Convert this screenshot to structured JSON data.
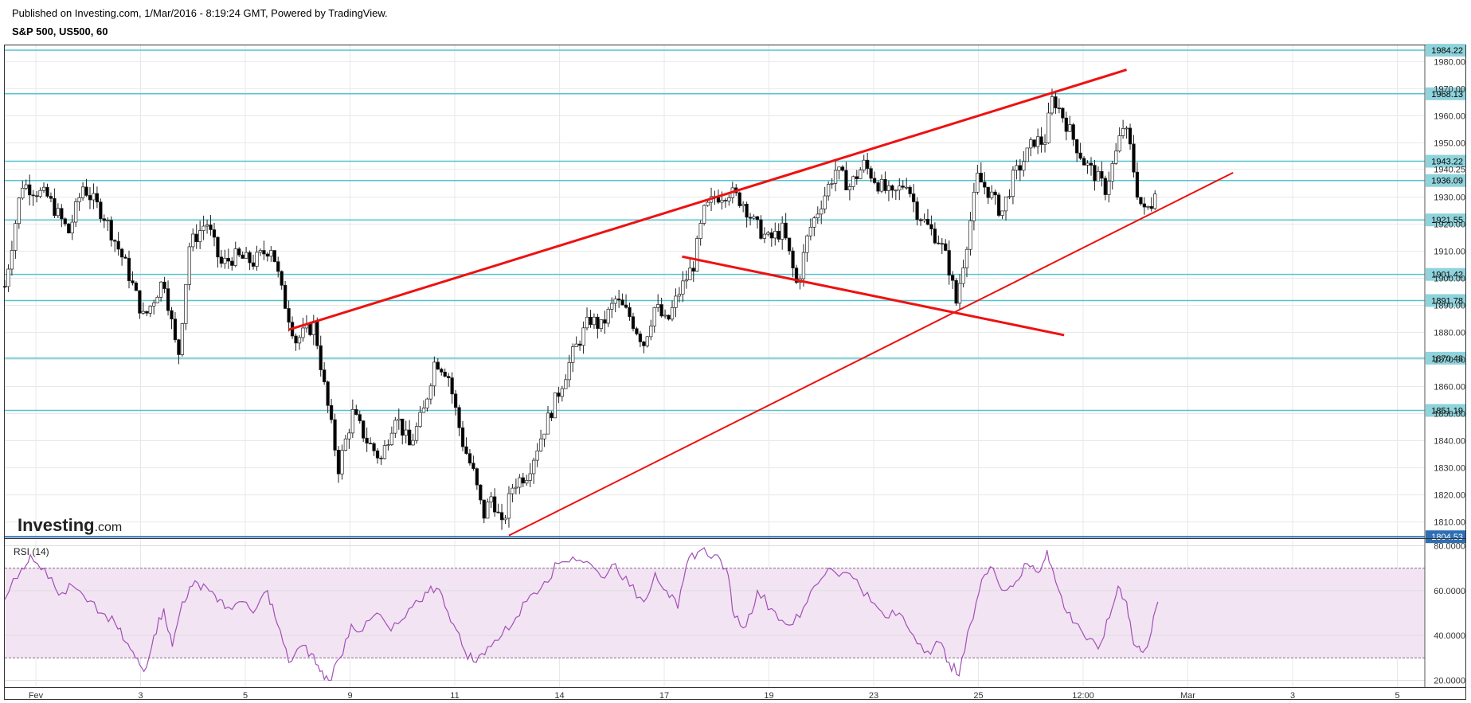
{
  "header": {
    "published": "Published on Investing.com, 1/Mar/2016 - 8:19:24 GMT, Powered by TradingView.",
    "symbol": "S&P 500, US500, 60"
  },
  "watermark": {
    "brand": "Investing",
    "suffix": ".com"
  },
  "rsi_label": "RSI (14)",
  "colors": {
    "hline": "#56c3d0",
    "trend": "#ee1111",
    "support_line": "#2e6fb3",
    "rsi_line": "#a24fb8",
    "rsi_band": "#f2e4f2",
    "candle_up": "#ffffff",
    "candle_down": "#000000",
    "grid": "#e8e8e8"
  },
  "chart_data": [
    {
      "type": "candlestick",
      "title": "S&P 500, US500, 60",
      "ylim": [
        1804,
        1986
      ],
      "price_ticks": [
        "1980.00",
        "1970.00",
        "1960.00",
        "1950.00",
        "1940.25",
        "1930.00",
        "1920.00",
        "1910.00",
        "1900.00",
        "1890.00",
        "1880.00",
        "1870.00",
        "1860.00",
        "1850.00",
        "1840.00",
        "1830.00",
        "1820.00",
        "1810.00"
      ],
      "x_ticks": [
        "Fev",
        "3",
        "5",
        "9",
        "11",
        "14",
        "17",
        "19",
        "23",
        "25",
        "12:00",
        "Mar",
        "3",
        "5"
      ],
      "horizontal_levels": [
        {
          "value": 1984.22,
          "label": "1984.22"
        },
        {
          "value": 1968.13,
          "label": "1968.13"
        },
        {
          "value": 1943.22,
          "label": "1943.22"
        },
        {
          "value": 1936.09,
          "label": "1936.09"
        },
        {
          "value": 1921.55,
          "label": "1921.55"
        },
        {
          "value": 1901.42,
          "label": "1901.42"
        },
        {
          "value": 1891.78,
          "label": "1891.78"
        },
        {
          "value": 1870.48,
          "label": "1870.48"
        },
        {
          "value": 1851.19,
          "label": "1851.19"
        },
        {
          "value": 1804.53,
          "label": "1804.53",
          "style": "support"
        }
      ],
      "trendlines": [
        {
          "name": "upper-channel",
          "x": [
            0.2,
            0.79
          ],
          "y": [
            1881,
            1977
          ],
          "width": "thick"
        },
        {
          "name": "lower-channel",
          "x": [
            0.355,
            0.865
          ],
          "y": [
            1805,
            1939
          ],
          "width": "thin"
        },
        {
          "name": "descending-line",
          "x": [
            0.477,
            0.746
          ],
          "y": [
            1908,
            1879
          ],
          "width": "thick"
        }
      ],
      "close_path": [
        [
          0.0,
          1897
        ],
        [
          0.012,
          1935
        ],
        [
          0.03,
          1930
        ],
        [
          0.045,
          1917
        ],
        [
          0.055,
          1934
        ],
        [
          0.07,
          1923
        ],
        [
          0.085,
          1905
        ],
        [
          0.098,
          1885
        ],
        [
          0.112,
          1900
        ],
        [
          0.122,
          1870
        ],
        [
          0.13,
          1912
        ],
        [
          0.142,
          1921
        ],
        [
          0.152,
          1905
        ],
        [
          0.162,
          1908
        ],
        [
          0.175,
          1906
        ],
        [
          0.188,
          1912
        ],
        [
          0.195,
          1895
        ],
        [
          0.205,
          1877
        ],
        [
          0.218,
          1883
        ],
        [
          0.225,
          1860
        ],
        [
          0.235,
          1830
        ],
        [
          0.245,
          1850
        ],
        [
          0.255,
          1840
        ],
        [
          0.265,
          1833
        ],
        [
          0.275,
          1850
        ],
        [
          0.285,
          1838
        ],
        [
          0.295,
          1851
        ],
        [
          0.303,
          1870
        ],
        [
          0.312,
          1865
        ],
        [
          0.322,
          1840
        ],
        [
          0.33,
          1828
        ],
        [
          0.337,
          1812
        ],
        [
          0.343,
          1820
        ],
        [
          0.35,
          1808
        ],
        [
          0.358,
          1824
        ],
        [
          0.368,
          1828
        ],
        [
          0.378,
          1842
        ],
        [
          0.39,
          1858
        ],
        [
          0.4,
          1872
        ],
        [
          0.412,
          1885
        ],
        [
          0.42,
          1882
        ],
        [
          0.43,
          1892
        ],
        [
          0.44,
          1886
        ],
        [
          0.45,
          1876
        ],
        [
          0.458,
          1890
        ],
        [
          0.466,
          1883
        ],
        [
          0.475,
          1895
        ],
        [
          0.485,
          1905
        ],
        [
          0.492,
          1924
        ],
        [
          0.5,
          1930
        ],
        [
          0.51,
          1932
        ],
        [
          0.52,
          1928
        ],
        [
          0.528,
          1920
        ],
        [
          0.538,
          1914
        ],
        [
          0.548,
          1918
        ],
        [
          0.558,
          1897
        ],
        [
          0.566,
          1917
        ],
        [
          0.575,
          1928
        ],
        [
          0.585,
          1940
        ],
        [
          0.595,
          1934
        ],
        [
          0.605,
          1942
        ],
        [
          0.615,
          1935
        ],
        [
          0.625,
          1930
        ],
        [
          0.635,
          1936
        ],
        [
          0.642,
          1925
        ],
        [
          0.65,
          1919
        ],
        [
          0.658,
          1914
        ],
        [
          0.664,
          1906
        ],
        [
          0.67,
          1891
        ],
        [
          0.677,
          1912
        ],
        [
          0.685,
          1937
        ],
        [
          0.693,
          1932
        ],
        [
          0.702,
          1924
        ],
        [
          0.71,
          1937
        ],
        [
          0.718,
          1944
        ],
        [
          0.725,
          1951
        ],
        [
          0.732,
          1950
        ],
        [
          0.738,
          1967
        ],
        [
          0.745,
          1960
        ],
        [
          0.752,
          1952
        ],
        [
          0.76,
          1943
        ],
        [
          0.768,
          1938
        ],
        [
          0.775,
          1933
        ],
        [
          0.782,
          1945
        ],
        [
          0.788,
          1957
        ],
        [
          0.793,
          1947
        ],
        [
          0.797,
          1933
        ],
        [
          0.802,
          1924
        ],
        [
          0.808,
          1928
        ],
        [
          0.812,
          1940
        ]
      ]
    },
    {
      "type": "line",
      "title": "RSI (14)",
      "ylim": [
        17,
        83
      ],
      "ticks": [
        "80.0000",
        "60.0000",
        "40.0000",
        "20.0000"
      ],
      "band": [
        30,
        70
      ],
      "x_ticks": [
        "Fev",
        "3",
        "5",
        "9",
        "11",
        "14",
        "17",
        "19",
        "23",
        "25",
        "12:00",
        "Mar",
        "3",
        "5"
      ],
      "values": [
        [
          0.0,
          56
        ],
        [
          0.012,
          70
        ],
        [
          0.018,
          76
        ],
        [
          0.028,
          70
        ],
        [
          0.038,
          58
        ],
        [
          0.048,
          62
        ],
        [
          0.058,
          55
        ],
        [
          0.068,
          50
        ],
        [
          0.078,
          45
        ],
        [
          0.085,
          37
        ],
        [
          0.092,
          30
        ],
        [
          0.098,
          24
        ],
        [
          0.105,
          40
        ],
        [
          0.112,
          52
        ],
        [
          0.118,
          35
        ],
        [
          0.125,
          55
        ],
        [
          0.132,
          62
        ],
        [
          0.14,
          63
        ],
        [
          0.148,
          58
        ],
        [
          0.155,
          52
        ],
        [
          0.165,
          55
        ],
        [
          0.175,
          50
        ],
        [
          0.185,
          60
        ],
        [
          0.192,
          45
        ],
        [
          0.2,
          28
        ],
        [
          0.208,
          35
        ],
        [
          0.216,
          32
        ],
        [
          0.222,
          24
        ],
        [
          0.228,
          20
        ],
        [
          0.236,
          30
        ],
        [
          0.244,
          45
        ],
        [
          0.252,
          42
        ],
        [
          0.262,
          50
        ],
        [
          0.272,
          42
        ],
        [
          0.282,
          48
        ],
        [
          0.292,
          55
        ],
        [
          0.3,
          62
        ],
        [
          0.308,
          58
        ],
        [
          0.316,
          45
        ],
        [
          0.324,
          33
        ],
        [
          0.332,
          28
        ],
        [
          0.34,
          35
        ],
        [
          0.35,
          40
        ],
        [
          0.36,
          48
        ],
        [
          0.37,
          58
        ],
        [
          0.38,
          64
        ],
        [
          0.39,
          72
        ],
        [
          0.4,
          75
        ],
        [
          0.41,
          73
        ],
        [
          0.42,
          66
        ],
        [
          0.43,
          72
        ],
        [
          0.44,
          62
        ],
        [
          0.45,
          55
        ],
        [
          0.458,
          68
        ],
        [
          0.466,
          60
        ],
        [
          0.474,
          52
        ],
        [
          0.482,
          75
        ],
        [
          0.49,
          78
        ],
        [
          0.5,
          76
        ],
        [
          0.508,
          70
        ],
        [
          0.514,
          48
        ],
        [
          0.522,
          44
        ],
        [
          0.53,
          60
        ],
        [
          0.54,
          52
        ],
        [
          0.55,
          45
        ],
        [
          0.56,
          48
        ],
        [
          0.57,
          62
        ],
        [
          0.58,
          70
        ],
        [
          0.59,
          68
        ],
        [
          0.6,
          65
        ],
        [
          0.61,
          55
        ],
        [
          0.62,
          48
        ],
        [
          0.63,
          50
        ],
        [
          0.64,
          40
        ],
        [
          0.65,
          33
        ],
        [
          0.658,
          37
        ],
        [
          0.665,
          28
        ],
        [
          0.672,
          22
        ],
        [
          0.68,
          45
        ],
        [
          0.688,
          65
        ],
        [
          0.696,
          70
        ],
        [
          0.704,
          60
        ],
        [
          0.712,
          64
        ],
        [
          0.72,
          72
        ],
        [
          0.728,
          68
        ],
        [
          0.734,
          78
        ],
        [
          0.74,
          64
        ],
        [
          0.748,
          50
        ],
        [
          0.756,
          45
        ],
        [
          0.762,
          38
        ],
        [
          0.77,
          34
        ],
        [
          0.778,
          48
        ],
        [
          0.784,
          62
        ],
        [
          0.79,
          55
        ],
        [
          0.795,
          36
        ],
        [
          0.8,
          33
        ],
        [
          0.806,
          38
        ],
        [
          0.812,
          55
        ]
      ]
    }
  ]
}
